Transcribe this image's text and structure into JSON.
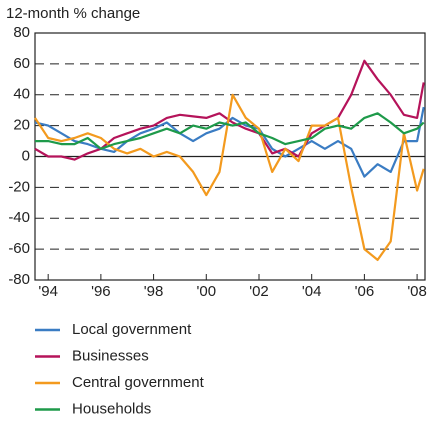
{
  "chart_data": {
    "type": "line",
    "y_label": "12-month % change",
    "x": [
      1993.5,
      1994,
      1994.5,
      1995,
      1995.5,
      1996,
      1996.5,
      1997,
      1997.5,
      1998,
      1998.5,
      1999,
      1999.5,
      2000,
      2000.5,
      2001,
      2001.5,
      2002,
      2002.5,
      2003,
      2003.5,
      2004,
      2004.5,
      2005,
      2005.5,
      2006,
      2006.5,
      2007,
      2007.5,
      2008,
      2008.25
    ],
    "series": [
      {
        "name": "Local government",
        "color": "#3a7cc3",
        "values": [
          22,
          20,
          15,
          10,
          8,
          5,
          3,
          10,
          15,
          18,
          22,
          15,
          10,
          15,
          18,
          25,
          20,
          18,
          5,
          0,
          5,
          10,
          5,
          10,
          5,
          -13,
          -5,
          -10,
          10,
          10,
          32
        ]
      },
      {
        "name": "Businesses",
        "color": "#b5135a",
        "values": [
          5,
          0,
          0,
          -2,
          2,
          5,
          12,
          15,
          18,
          20,
          25,
          27,
          26,
          25,
          28,
          22,
          18,
          15,
          2,
          5,
          0,
          15,
          20,
          25,
          40,
          62,
          50,
          40,
          27,
          25,
          48
        ]
      },
      {
        "name": "Central government",
        "color": "#f39a1e",
        "values": [
          25,
          12,
          10,
          12,
          15,
          12,
          5,
          2,
          5,
          0,
          3,
          0,
          -10,
          -25,
          -10,
          40,
          25,
          18,
          -10,
          5,
          -3,
          20,
          20,
          25,
          -20,
          -60,
          -67,
          -55,
          15,
          -22,
          -8
        ]
      },
      {
        "name": "Households",
        "color": "#1e9a4a",
        "values": [
          10,
          10,
          8,
          8,
          12,
          5,
          8,
          10,
          12,
          15,
          18,
          15,
          20,
          18,
          22,
          20,
          22,
          15,
          12,
          8,
          10,
          12,
          18,
          20,
          18,
          25,
          28,
          22,
          15,
          18,
          22
        ]
      }
    ],
    "xlim": [
      1993.5,
      2008.3
    ],
    "xticks": [
      {
        "value": 1994,
        "label": "'94"
      },
      {
        "value": 1996,
        "label": "'96"
      },
      {
        "value": 1998,
        "label": "'98"
      },
      {
        "value": 2000,
        "label": "'00"
      },
      {
        "value": 2002,
        "label": "'02"
      },
      {
        "value": 2004,
        "label": "'04"
      },
      {
        "value": 2006,
        "label": "'06"
      },
      {
        "value": 2008,
        "label": "'08"
      }
    ],
    "ylim": [
      -80,
      80
    ],
    "yticks": [
      -80,
      -60,
      -40,
      -20,
      0,
      20,
      40,
      60,
      80
    ],
    "grid": true
  }
}
